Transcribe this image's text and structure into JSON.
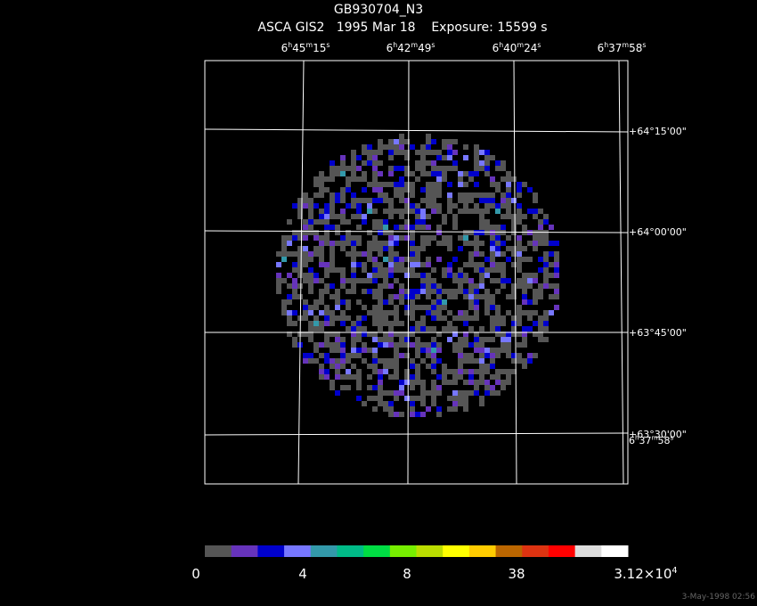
{
  "header": {
    "title": "GB930704_N3",
    "subtitle": "ASCA GIS2   1995 Mar 18    Exposure: 15599 s"
  },
  "ra_labels": [
    [
      "6",
      "h",
      "45",
      "m",
      "15",
      "s"
    ],
    [
      "6",
      "h",
      "42",
      "m",
      "49",
      "s"
    ],
    [
      "6",
      "h",
      "40",
      "m",
      "24",
      "s"
    ],
    [
      "6",
      "h",
      "37",
      "m",
      "58",
      "s"
    ]
  ],
  "dec_labels": [
    "+64°15'00\"",
    "+64°00'00\"",
    "+63°45'00\"",
    "+63°30'00\""
  ],
  "overlap_label": [
    "6",
    "h",
    "37",
    "m",
    "58",
    "s"
  ],
  "colorbar": {
    "colors": [
      "#555555",
      "#6633bb",
      "#0000cc",
      "#7777ff",
      "#3399aa",
      "#00bb88",
      "#00dd44",
      "#77ee00",
      "#bbdd00",
      "#ffff00",
      "#ffcc00",
      "#bb6600",
      "#dd3311",
      "#ff0000",
      "#dddddd",
      "#ffffff"
    ],
    "tick_labels": [
      [
        "0"
      ],
      [
        "4"
      ],
      [
        "8"
      ],
      [
        "38"
      ],
      [
        "3.12×10",
        "4"
      ]
    ]
  },
  "timestamp": "3-May-1998 02:56"
}
